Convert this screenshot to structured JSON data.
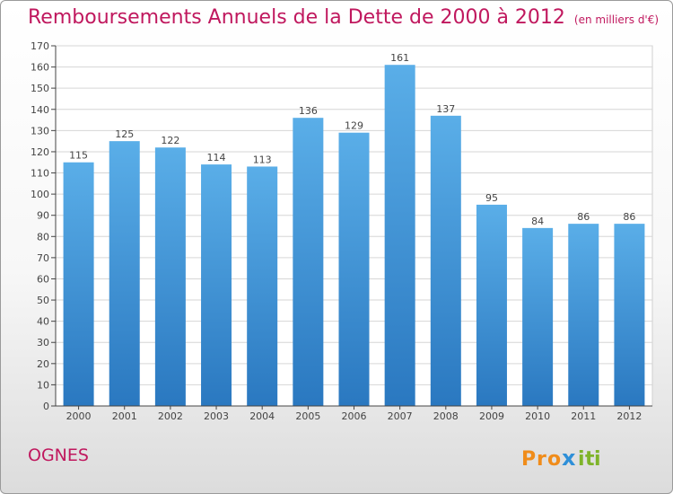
{
  "chart_data": {
    "type": "bar",
    "title": "Remboursements Annuels de la Dette de 2000 à 2012",
    "subtitle": "(en milliers d'€)",
    "categories": [
      "2000",
      "2001",
      "2002",
      "2003",
      "2004",
      "2005",
      "2006",
      "2007",
      "2008",
      "2009",
      "2010",
      "2011",
      "2012"
    ],
    "values": [
      115,
      125,
      122,
      114,
      113,
      136,
      129,
      161,
      137,
      95,
      84,
      86,
      86
    ],
    "ylim": [
      0,
      170
    ],
    "yticks": [
      0,
      10,
      20,
      30,
      40,
      50,
      60,
      70,
      80,
      90,
      100,
      110,
      120,
      130,
      140,
      150,
      160,
      170
    ],
    "grid": true,
    "bar_color_top": "#5aaee8",
    "bar_color_bottom": "#2a78c0"
  },
  "footer": {
    "place": "OGNES",
    "logo_letters": [
      "P",
      "r",
      "o",
      "x",
      "i",
      "t",
      "i"
    ],
    "logo_colors": [
      "#f08c1a",
      "#f08c1a",
      "#f08c1a",
      "#2e8fd8",
      "#7fb42a",
      "#7fb42a",
      "#7fb42a"
    ]
  },
  "accent_color": "#c0185e"
}
